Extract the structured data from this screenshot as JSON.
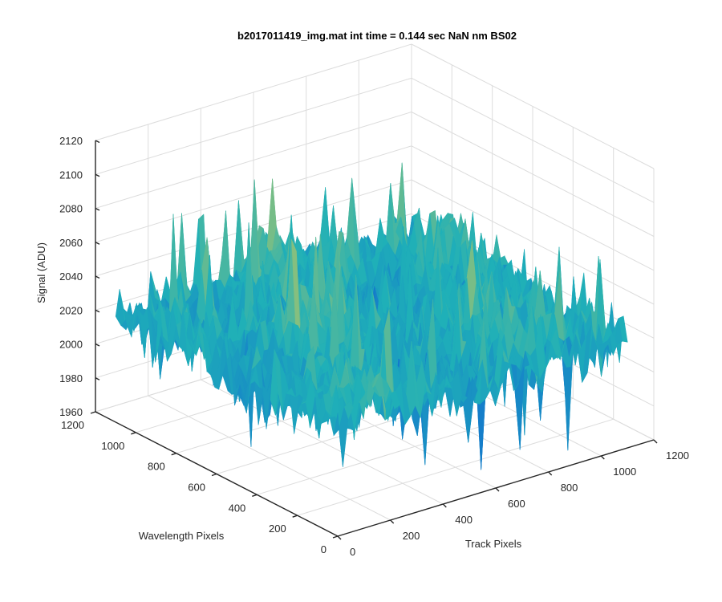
{
  "chart_data": {
    "type": "surface",
    "title": "b2017011419_img.mat int time = 0.144 sec  NaN nm BS02",
    "xlabel": "Track Pixels",
    "ylabel": "Wavelength Pixels",
    "zlabel": "Signal (ADU)",
    "xlim": [
      0,
      1200
    ],
    "ylim": [
      0,
      1200
    ],
    "zlim": [
      1960,
      2120
    ],
    "xticks": [
      "0",
      "200",
      "400",
      "600",
      "800",
      "1000",
      "1200"
    ],
    "yticks": [
      "0",
      "200",
      "400",
      "600",
      "800",
      "1000",
      "1200"
    ],
    "zticks": [
      "1960",
      "1980",
      "2000",
      "2020",
      "2040",
      "2060",
      "2080",
      "2100",
      "2120"
    ],
    "data_extent": {
      "x": [
        0,
        1100
      ],
      "y": [
        0,
        1100
      ]
    },
    "mean_signal": 2025,
    "signal_range_shown": [
      1955,
      2115
    ],
    "grid": true,
    "colormap": "parula",
    "colors": {
      "low": "#0f5ed6",
      "mid": "#1fb0b8",
      "high": "#c8c95a"
    }
  }
}
